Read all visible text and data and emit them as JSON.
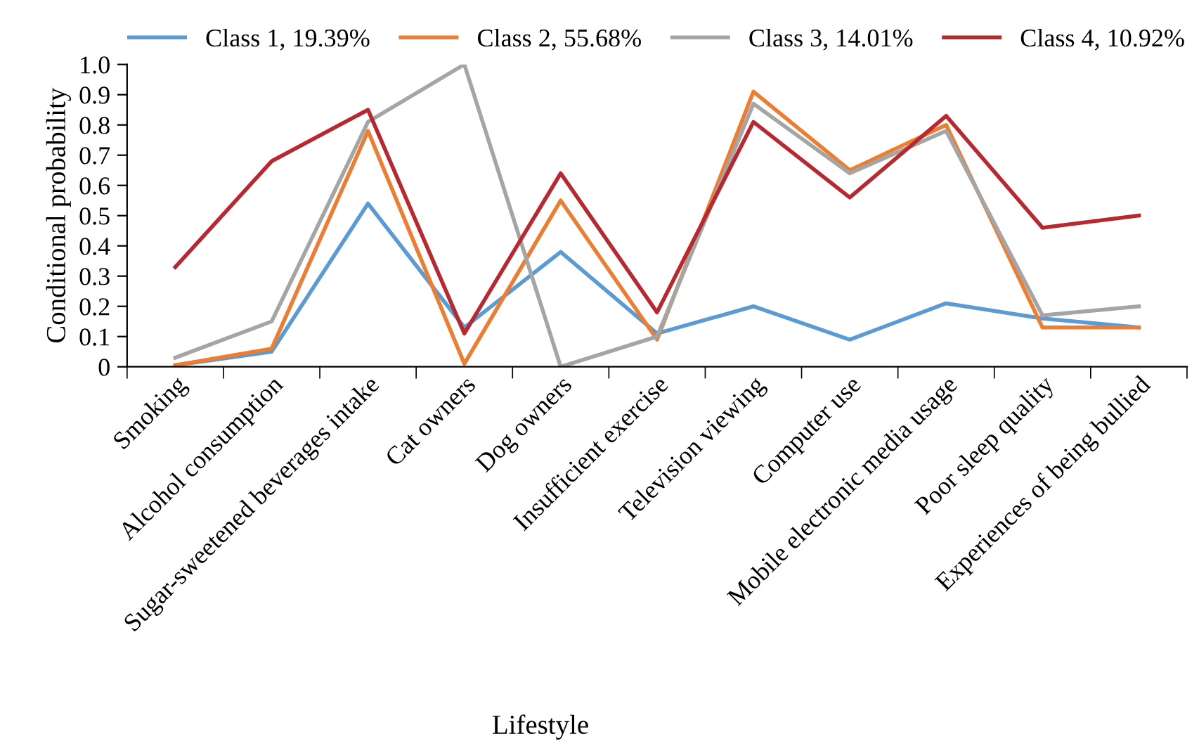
{
  "chart_data": {
    "type": "line",
    "xlabel": "Lifestyle",
    "ylabel": "Conditional probability",
    "categories": [
      "Smoking",
      "Alcohol consumption",
      "Sugar-sweetened beverages intake",
      "Cat owners",
      "Dog owners",
      "Insufficient exercise",
      "Television viewing",
      "Computer use",
      "Mobile electronic media usage",
      "Poor sleep quality",
      "Experiences of being bullied"
    ],
    "series": [
      {
        "name": "Class 1, 19.39%",
        "color": "#5b9bd5",
        "values": [
          0.005,
          0.05,
          0.54,
          0.13,
          0.38,
          0.11,
          0.2,
          0.09,
          0.21,
          0.16,
          0.13
        ]
      },
      {
        "name": "Class 2, 55.68%",
        "color": "#ed7d31",
        "values": [
          0.005,
          0.06,
          0.78,
          0.01,
          0.55,
          0.09,
          0.91,
          0.65,
          0.8,
          0.13,
          0.13
        ]
      },
      {
        "name": "Class 3, 14.01%",
        "color": "#a5a5a5",
        "values": [
          0.03,
          0.15,
          0.81,
          1.0,
          0.0,
          0.1,
          0.87,
          0.64,
          0.78,
          0.17,
          0.2
        ]
      },
      {
        "name": "Class 4, 10.92%",
        "color": "#b8282e",
        "values": [
          0.33,
          0.68,
          0.85,
          0.11,
          0.64,
          0.18,
          0.81,
          0.56,
          0.83,
          0.46,
          0.5
        ]
      }
    ],
    "ylim": [
      0,
      1.0
    ],
    "yticks": [
      {
        "value": 0,
        "label": "0"
      },
      0.1,
      0.2,
      0.3,
      0.4,
      0.5,
      0.6,
      0.7,
      0.8,
      0.9,
      {
        "value": 1.0,
        "label": "1.0"
      }
    ],
    "grid": false,
    "legend": "top",
    "marker": "none",
    "line_style": "solid"
  }
}
